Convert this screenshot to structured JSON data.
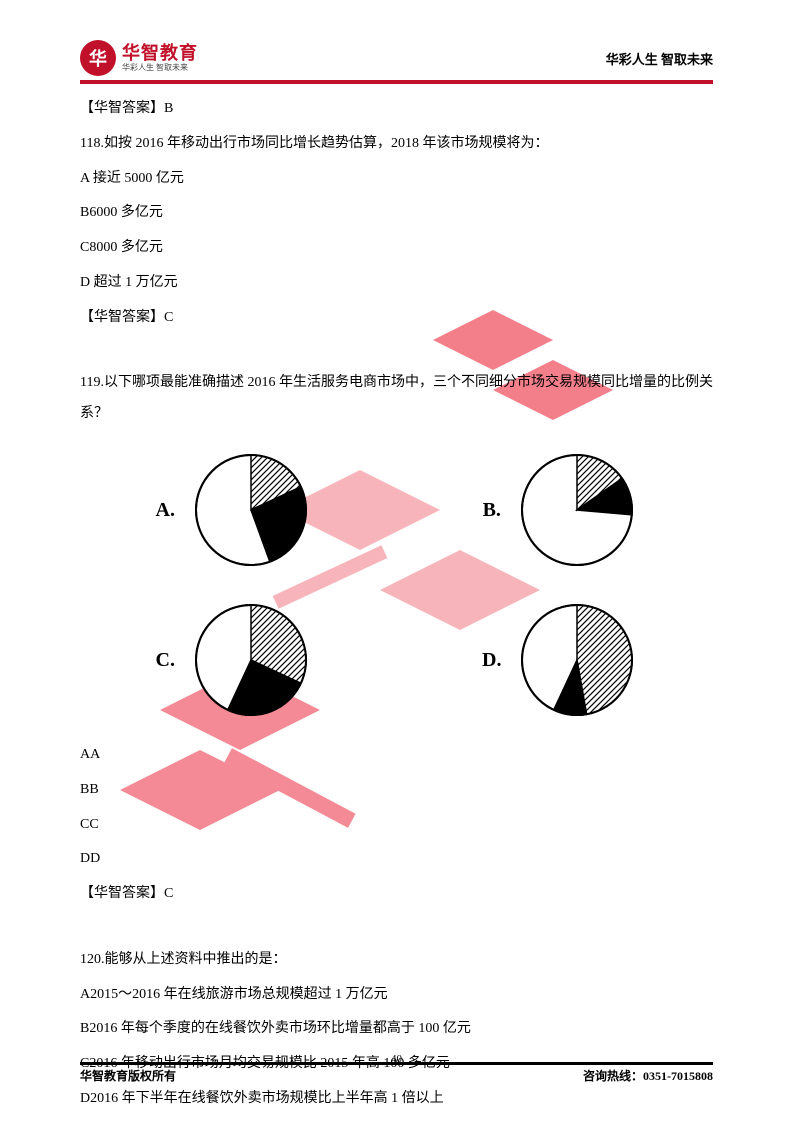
{
  "header": {
    "logo_char": "华",
    "logo_main": "华智教育",
    "logo_sub": "华彩人生 智取未来",
    "slogan": "华彩人生 智取未来"
  },
  "answer_117": "【华智答案】B",
  "q118": {
    "stem": "118.如按 2016 年移动出行市场同比增长趋势估算，2018 年该市场规模将为：",
    "A": "A 接近 5000 亿元",
    "B": "B6000 多亿元",
    "C": "C8000 多亿元",
    "D": "D 超过 1 万亿元",
    "answer": "【华智答案】C"
  },
  "q119": {
    "stem": "119.以下哪项最能准确描述 2016 年生活服务电商市场中，三个不同细分市场交易规模同比增量的比例关系？",
    "labels": {
      "A": "A.",
      "B": "B.",
      "C": "C.",
      "D": "D."
    },
    "AA": "AA",
    "BB": "BB",
    "CC": "CC",
    "DD": "DD",
    "answer": "【华智答案】C"
  },
  "q120": {
    "stem": "120.能够从上述资料中推出的是：",
    "A": "A2015～2016 年在线旅游市场总规模超过 1 万亿元",
    "B": "B2016 年每个季度的在线餐饮外卖市场环比增量都高于 100 亿元",
    "C": "C2016 年移动出行市场月均交易规模比 2015 年高 100 多亿元",
    "D": "D2016 年下半年在线餐饮外卖市场规模比上半年高 1 倍以上"
  },
  "charts": {
    "A": {
      "type": "pie",
      "radius": 55,
      "stroke": "#000000",
      "fill_bg": "#ffffff",
      "slices": [
        {
          "start": -90,
          "end": -25,
          "fill": "hatch"
        },
        {
          "start": -25,
          "end": 70,
          "fill": "#000000"
        },
        {
          "start": 70,
          "end": 270,
          "fill": "#ffffff"
        }
      ]
    },
    "B": {
      "type": "pie",
      "radius": 55,
      "stroke": "#000000",
      "fill_bg": "#ffffff",
      "slices": [
        {
          "start": -90,
          "end": -35,
          "fill": "hatch"
        },
        {
          "start": -35,
          "end": 5,
          "fill": "#000000"
        },
        {
          "start": 5,
          "end": 270,
          "fill": "#ffffff"
        }
      ]
    },
    "C": {
      "type": "pie",
      "radius": 55,
      "stroke": "#000000",
      "fill_bg": "#ffffff",
      "slices": [
        {
          "start": -90,
          "end": 25,
          "fill": "hatch"
        },
        {
          "start": 25,
          "end": 115,
          "fill": "#000000"
        },
        {
          "start": 115,
          "end": 270,
          "fill": "#ffffff"
        }
      ]
    },
    "D": {
      "type": "pie",
      "radius": 55,
      "stroke": "#000000",
      "fill_bg": "#ffffff",
      "slices": [
        {
          "start": -90,
          "end": 80,
          "fill": "hatch"
        },
        {
          "start": 80,
          "end": 115,
          "fill": "#000000"
        },
        {
          "start": 115,
          "end": 270,
          "fill": "#ffffff"
        }
      ]
    }
  },
  "footer": {
    "left": "华智教育版权所有",
    "page": "40",
    "right": "咨询热线：0351-7015808"
  },
  "watermark_color": "#ec2b3f"
}
